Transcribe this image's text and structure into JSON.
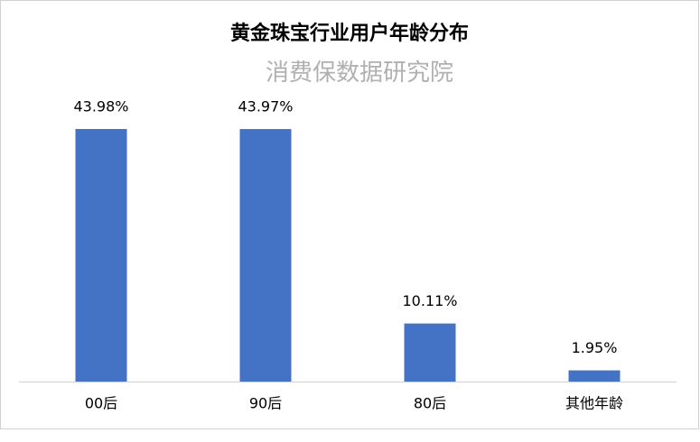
{
  "chart_data": {
    "type": "bar",
    "title": "黄金珠宝行业用户年龄分布",
    "subtitle": "消费保数据研究院",
    "categories": [
      "00后",
      "90后",
      "80后",
      "其他年龄"
    ],
    "values": [
      43.98,
      43.97,
      10.11,
      1.95
    ],
    "value_labels": [
      "43.98%",
      "43.97%",
      "10.11%",
      "1.95%"
    ],
    "color": "#4472c4",
    "grid": false
  }
}
